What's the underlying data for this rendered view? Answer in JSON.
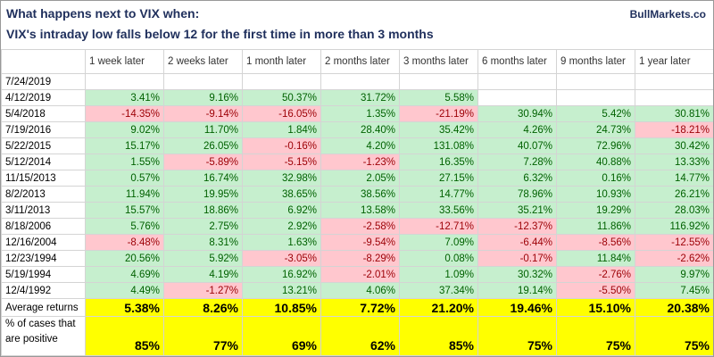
{
  "header": {
    "title": "What happens next to VIX when:",
    "subtitle": "VIX's intraday low falls below 12 for the first time in more than 3 months",
    "source": "BullMarkets.co"
  },
  "table": {
    "columns": [
      "1 week later",
      "2 weeks later",
      "1 month later",
      "2 months later",
      "3 months later",
      "6 months later",
      "9 months later",
      "1 year later"
    ],
    "rows": [
      [
        "7/24/2019",
        null,
        null,
        null,
        null,
        null,
        null,
        null,
        null
      ],
      [
        "4/12/2019",
        "3.41%",
        "9.16%",
        "50.37%",
        "31.72%",
        "5.58%",
        null,
        null,
        null
      ],
      [
        "5/4/2018",
        "-14.35%",
        "-9.14%",
        "-16.05%",
        "1.35%",
        "-21.19%",
        "30.94%",
        "5.42%",
        "30.81%"
      ],
      [
        "7/19/2016",
        "9.02%",
        "11.70%",
        "1.84%",
        "28.40%",
        "35.42%",
        "4.26%",
        "24.73%",
        "-18.21%"
      ],
      [
        "5/22/2015",
        "15.17%",
        "26.05%",
        "-0.16%",
        "4.20%",
        "131.08%",
        "40.07%",
        "72.96%",
        "30.42%"
      ],
      [
        "5/12/2014",
        "1.55%",
        "-5.89%",
        "-5.15%",
        "-1.23%",
        "16.35%",
        "7.28%",
        "40.88%",
        "13.33%"
      ],
      [
        "11/15/2013",
        "0.57%",
        "16.74%",
        "32.98%",
        "2.05%",
        "27.15%",
        "6.32%",
        "0.16%",
        "14.77%"
      ],
      [
        "8/2/2013",
        "11.94%",
        "19.95%",
        "38.65%",
        "38.56%",
        "14.77%",
        "78.96%",
        "10.93%",
        "26.21%"
      ],
      [
        "3/11/2013",
        "15.57%",
        "18.86%",
        "6.92%",
        "13.58%",
        "33.56%",
        "35.21%",
        "19.29%",
        "28.03%"
      ],
      [
        "8/18/2006",
        "5.76%",
        "2.75%",
        "2.92%",
        "-2.58%",
        "-12.71%",
        "-12.37%",
        "11.86%",
        "116.92%"
      ],
      [
        "12/16/2004",
        "-8.48%",
        "8.31%",
        "1.63%",
        "-9.54%",
        "7.09%",
        "-6.44%",
        "-8.56%",
        "-12.55%"
      ],
      [
        "12/23/1994",
        "20.56%",
        "5.92%",
        "-3.05%",
        "-8.29%",
        "0.08%",
        "-0.17%",
        "11.84%",
        "-2.62%"
      ],
      [
        "5/19/1994",
        "4.69%",
        "4.19%",
        "16.92%",
        "-2.01%",
        "1.09%",
        "30.32%",
        "-2.76%",
        "9.97%"
      ],
      [
        "12/4/1992",
        "4.49%",
        "-1.27%",
        "13.21%",
        "4.06%",
        "37.34%",
        "19.14%",
        "-5.50%",
        "7.45%"
      ]
    ],
    "average": {
      "label": "Average returns",
      "values": [
        "5.38%",
        "8.26%",
        "10.85%",
        "7.72%",
        "21.20%",
        "19.46%",
        "15.10%",
        "20.38%"
      ]
    },
    "positive": {
      "label": "% of cases that are positive",
      "values": [
        "85%",
        "77%",
        "69%",
        "62%",
        "85%",
        "75%",
        "75%",
        "75%"
      ]
    }
  }
}
